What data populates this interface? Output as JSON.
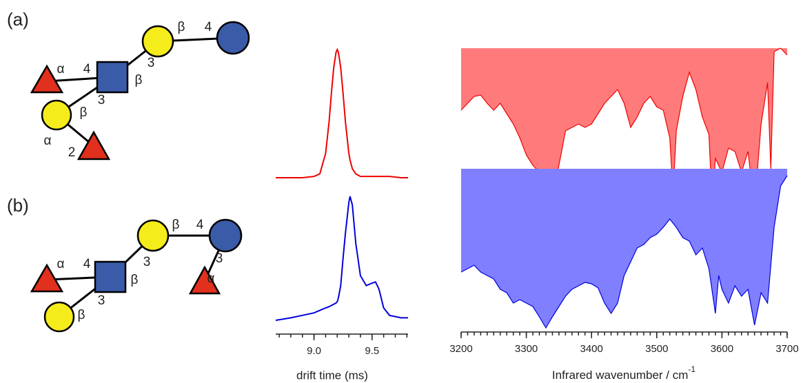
{
  "diagrams": [
    {
      "label": "(a)",
      "linkages": [
        "β",
        "4",
        "3",
        "β",
        "4",
        "α",
        "3",
        "β",
        "α",
        "2"
      ]
    },
    {
      "label": "(b)",
      "linkages": [
        "β",
        "4",
        "3",
        "3",
        "α",
        "β",
        "4",
        "α",
        "3",
        "β"
      ]
    }
  ],
  "chart_data": [
    {
      "type": "line",
      "x": [
        8.67,
        8.8,
        8.9,
        9.0,
        9.05,
        9.1,
        9.13,
        9.15,
        9.17,
        9.19,
        9.2,
        9.21,
        9.23,
        9.25,
        9.27,
        9.3,
        9.31,
        9.33,
        9.36,
        9.4,
        9.45,
        9.5,
        9.53,
        9.56,
        9.6,
        9.65,
        9.75,
        9.81
      ],
      "series": [
        {
          "color": "#ee0000",
          "values": [
            0,
            0,
            0,
            0.01,
            0.03,
            0.19,
            0.44,
            0.66,
            0.86,
            0.98,
            1,
            0.98,
            0.86,
            0.66,
            0.44,
            0.19,
            0.14,
            0.07,
            0.03,
            0.01,
            0.01,
            0.01,
            0.01,
            0.01,
            0.01,
            0.01,
            0,
            0
          ]
        },
        {
          "color": "#0000dd",
          "values": [
            0,
            0.02,
            0.04,
            0.06,
            0.08,
            0.1,
            0.11,
            0.12,
            0.13,
            0.14,
            0.15,
            0.18,
            0.28,
            0.5,
            0.7,
            0.95,
            1,
            0.93,
            0.62,
            0.36,
            0.28,
            0.3,
            0.31,
            0.25,
            0.1,
            0.04,
            0.02,
            0.02
          ]
        }
      ],
      "xlim": [
        8.67,
        9.81
      ],
      "xticks": [
        {
          "value": 9,
          "label": "9.0"
        },
        {
          "value": 9.5,
          "label": "9.5"
        }
      ],
      "xminor_step": 0.1,
      "xlabel": "drift time (ms)"
    },
    {
      "type": "area",
      "series": [
        {
          "color": "#ee0000",
          "fill": "#ff7b7b",
          "x": [
            3200,
            3210,
            3220,
            3230,
            3240,
            3250,
            3260,
            3270,
            3280,
            3290,
            3300,
            3310,
            3320,
            3330,
            3333,
            3340,
            3350,
            3360,
            3370,
            3380,
            3390,
            3400,
            3410,
            3420,
            3430,
            3440,
            3450,
            3460,
            3470,
            3480,
            3490,
            3500,
            3510,
            3520,
            3525,
            3530,
            3540,
            3550,
            3560,
            3570,
            3580,
            3585,
            3590,
            3600,
            3610,
            3620,
            3630,
            3640,
            3650,
            3660,
            3670,
            3675,
            3680,
            3690,
            3700
          ],
          "values": [
            0.9,
            0.8,
            0.7,
            0.68,
            0.8,
            0.9,
            0.8,
            0.95,
            1.1,
            1.3,
            1.55,
            1.7,
            1.8,
            2.5,
            2.58,
            2.2,
            1.7,
            1.2,
            1.15,
            1.1,
            1.15,
            1.1,
            0.95,
            0.8,
            0.7,
            0.6,
            0.8,
            1.15,
            1.0,
            0.8,
            0.7,
            0.85,
            0.9,
            1.3,
            2.1,
            1.2,
            0.7,
            0.35,
            0.6,
            1.0,
            1.25,
            2.25,
            1.6,
            1.8,
            1.45,
            1.5,
            1.8,
            1.5,
            2.3,
            1.1,
            0.5,
            1.75,
            0.05,
            0,
            0.1
          ]
        },
        {
          "color": "#0000dd",
          "fill": "#7f7fff",
          "x": [
            3200,
            3210,
            3220,
            3230,
            3240,
            3250,
            3260,
            3270,
            3280,
            3290,
            3300,
            3310,
            3320,
            3330,
            3340,
            3350,
            3360,
            3370,
            3380,
            3390,
            3400,
            3410,
            3420,
            3430,
            3440,
            3450,
            3460,
            3470,
            3480,
            3490,
            3500,
            3510,
            3520,
            3530,
            3540,
            3550,
            3560,
            3570,
            3580,
            3590,
            3595,
            3600,
            3610,
            3620,
            3630,
            3640,
            3650,
            3660,
            3670,
            3680,
            3690,
            3700
          ],
          "values": [
            1.5,
            1.45,
            1.4,
            1.5,
            1.55,
            1.6,
            1.75,
            1.8,
            1.95,
            1.9,
            1.95,
            2.0,
            2.15,
            2.31,
            2.15,
            2.0,
            1.85,
            1.75,
            1.7,
            1.65,
            1.67,
            1.73,
            1.95,
            2.1,
            1.95,
            1.55,
            1.35,
            1.15,
            1.1,
            1.0,
            0.95,
            0.85,
            0.73,
            0.85,
            1.0,
            1.05,
            1.25,
            1.15,
            1.45,
            2.1,
            1.55,
            1.75,
            1.95,
            1.7,
            1.85,
            1.75,
            2.27,
            1.8,
            1.95,
            0.85,
            0.25,
            0.1
          ]
        }
      ],
      "xlim": [
        3200,
        3700
      ],
      "xticks": [
        3200,
        3300,
        3400,
        3500,
        3600,
        3700
      ],
      "xminor_step": 10,
      "xlabel": "Infrared wavenumber / cm",
      "xlabel_superscript": "-1"
    }
  ]
}
